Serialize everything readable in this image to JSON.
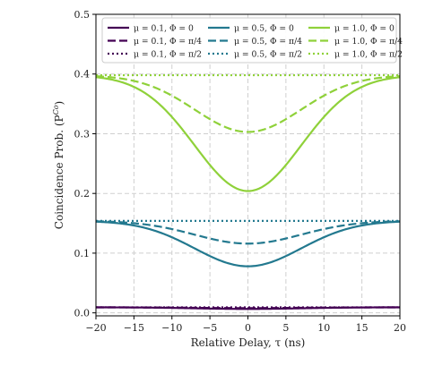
{
  "chart_data": {
    "type": "line",
    "xlabel": "Relative Delay, τ (ns)",
    "ylabel": "Coincidence Prob. (P",
    "ylabel_superscript": "Co",
    "ylabel_close": ")",
    "xlim": [
      -20,
      20
    ],
    "ylim": [
      -0.005,
      0.5
    ],
    "xticks": [
      -20,
      -15,
      -10,
      -5,
      0,
      5,
      10,
      15,
      20
    ],
    "xtick_labels": [
      "−20",
      "−15",
      "−10",
      "−5",
      "0",
      "5",
      "10",
      "15",
      "20"
    ],
    "yticks": [
      0.0,
      0.1,
      0.2,
      0.3,
      0.4,
      0.5
    ],
    "ytick_labels": [
      "0.0",
      "0.1",
      "0.2",
      "0.3",
      "0.4",
      "0.5"
    ],
    "grid": true,
    "legend_placement": "top",
    "dip_width_ns": 7,
    "series": [
      {
        "name": "μ = 0.1, Φ = 0",
        "color": "#440154",
        "dash": "solid",
        "outer": 0.0093,
        "center": 0.0066
      },
      {
        "name": "μ = 0.1, Φ = π/4",
        "color": "#440154",
        "dash": "dashed",
        "outer": 0.0093,
        "center": 0.008
      },
      {
        "name": "μ = 0.1, Φ = π/2",
        "color": "#440154",
        "dash": "dotted",
        "outer": 0.0093,
        "center": 0.0093
      },
      {
        "name": "μ = 0.5, Φ = 0",
        "color": "#23798f",
        "dash": "solid",
        "outer": 0.154,
        "center": 0.078
      },
      {
        "name": "μ = 0.5, Φ = π/4",
        "color": "#23798f",
        "dash": "dashed",
        "outer": 0.154,
        "center": 0.116
      },
      {
        "name": "μ = 0.5, Φ = π/2",
        "color": "#23798f",
        "dash": "dotted",
        "outer": 0.154,
        "center": 0.154
      },
      {
        "name": "μ = 1.0, Φ = 0",
        "color": "#8fd13a",
        "dash": "solid",
        "outer": 0.398,
        "center": 0.204
      },
      {
        "name": "μ = 1.0, Φ = π/4",
        "color": "#8fd13a",
        "dash": "dashed",
        "outer": 0.398,
        "center": 0.303
      },
      {
        "name": "μ = 1.0, Φ = π/2",
        "color": "#8fd13a",
        "dash": "dotted",
        "outer": 0.398,
        "center": 0.398
      }
    ]
  }
}
